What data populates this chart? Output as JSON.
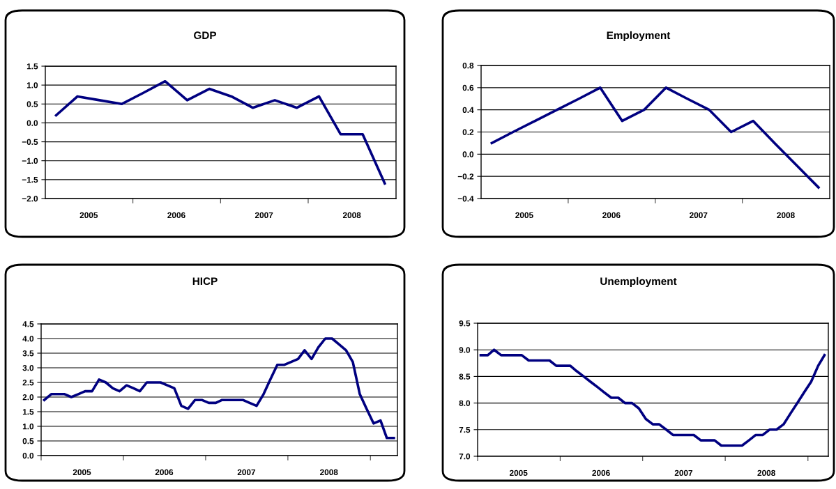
{
  "chart_data": [
    {
      "type": "line",
      "title": "GDP",
      "x": [
        "2005-02-15",
        "2005-05-15",
        "2005-08-15",
        "2005-11-15",
        "2006-02-15",
        "2006-05-15",
        "2006-08-15",
        "2006-11-15",
        "2007-02-15",
        "2007-05-15",
        "2007-08-15",
        "2007-11-15",
        "2008-02-15",
        "2008-05-15",
        "2008-08-15",
        "2008-11-15"
      ],
      "series": [
        {
          "color": "#000080",
          "values": [
            0.2,
            0.7,
            0.6,
            0.5,
            0.8,
            1.1,
            0.6,
            0.9,
            0.7,
            0.4,
            0.6,
            0.4,
            0.7,
            -0.3,
            -0.3,
            -1.6
          ]
        }
      ],
      "xlim": [
        "2005-01-01",
        "2009-01-01"
      ],
      "xticks": [
        {
          "value": "2005-07-01",
          "label": "2005"
        },
        {
          "value": "2006-01-01",
          "label": null
        },
        {
          "value": "2006-07-01",
          "label": "2006"
        },
        {
          "value": "2007-01-01",
          "label": null
        },
        {
          "value": "2007-07-01",
          "label": "2007"
        },
        {
          "value": "2008-01-01",
          "label": null
        },
        {
          "value": "2008-07-01",
          "label": "2008"
        }
      ],
      "ylim": [
        -2.0,
        1.5
      ],
      "yticks": [
        {
          "value": -2.0,
          "label": "−2.0"
        },
        {
          "value": -1.5,
          "label": "−1.5"
        },
        {
          "value": -1.0,
          "label": "−1.0"
        },
        {
          "value": -0.5,
          "label": "−0.5"
        },
        {
          "value": 0,
          "label": "0.0"
        },
        {
          "value": 0.5,
          "label": "0.5"
        },
        {
          "value": 1.0,
          "label": "1.0"
        },
        {
          "value": 1.5,
          "label": "1.5"
        }
      ],
      "grid": "y",
      "marker": "none",
      "line_style": "solid"
    },
    {
      "type": "line",
      "title": "Employment",
      "x": [
        "2005-02-15",
        "2005-05-15",
        "2005-08-15",
        "2005-11-15",
        "2006-02-15",
        "2006-05-15",
        "2006-08-15",
        "2006-11-15",
        "2007-02-15",
        "2007-05-15",
        "2007-08-15",
        "2007-11-15",
        "2008-02-15",
        "2008-05-15",
        "2008-08-15",
        "2008-11-15"
      ],
      "series": [
        {
          "color": "#000080",
          "values": [
            0.1,
            0.2,
            0.3,
            0.4,
            0.5,
            0.6,
            0.3,
            0.4,
            0.6,
            0.5,
            0.4,
            0.2,
            0.3,
            0.1,
            -0.1,
            -0.3
          ]
        }
      ],
      "xlim": [
        "2005-01-01",
        "2009-01-01"
      ],
      "xticks": [
        {
          "value": "2005-07-01",
          "label": "2005"
        },
        {
          "value": "2006-01-01",
          "label": null
        },
        {
          "value": "2006-07-01",
          "label": "2006"
        },
        {
          "value": "2007-01-01",
          "label": null
        },
        {
          "value": "2007-07-01",
          "label": "2007"
        },
        {
          "value": "2008-01-01",
          "label": null
        },
        {
          "value": "2008-07-01",
          "label": "2008"
        }
      ],
      "ylim": [
        -0.4,
        0.8
      ],
      "yticks": [
        {
          "value": -0.4,
          "label": "−0.4"
        },
        {
          "value": -0.2,
          "label": "−0.2"
        },
        {
          "value": 0,
          "label": "0.0"
        },
        {
          "value": 0.2,
          "label": "0.2"
        },
        {
          "value": 0.4,
          "label": "0.4"
        },
        {
          "value": 0.6,
          "label": "0.6"
        },
        {
          "value": 0.8,
          "label": "0.8"
        }
      ],
      "grid": "y",
      "marker": "none",
      "line_style": "solid"
    },
    {
      "type": "line",
      "title": "HICP",
      "x": [
        "2005-01-15",
        "2005-02-15",
        "2005-03-15",
        "2005-04-15",
        "2005-05-15",
        "2005-06-15",
        "2005-07-15",
        "2005-08-15",
        "2005-09-15",
        "2005-10-15",
        "2005-11-15",
        "2005-12-15",
        "2006-01-15",
        "2006-02-15",
        "2006-03-15",
        "2006-04-15",
        "2006-05-15",
        "2006-06-15",
        "2006-07-15",
        "2006-08-15",
        "2006-09-15",
        "2006-10-15",
        "2006-11-15",
        "2006-12-15",
        "2007-01-15",
        "2007-02-15",
        "2007-03-15",
        "2007-04-15",
        "2007-05-15",
        "2007-06-15",
        "2007-07-15",
        "2007-08-15",
        "2007-09-15",
        "2007-10-15",
        "2007-11-15",
        "2007-12-15",
        "2008-01-15",
        "2008-02-15",
        "2008-03-15",
        "2008-04-15",
        "2008-05-15",
        "2008-06-15",
        "2008-07-15",
        "2008-08-15",
        "2008-09-15",
        "2008-10-15",
        "2008-11-15",
        "2008-12-15",
        "2009-01-15",
        "2009-02-15",
        "2009-03-15",
        "2009-04-15"
      ],
      "series": [
        {
          "color": "#000080",
          "values": [
            1.9,
            2.1,
            2.1,
            2.1,
            2.0,
            2.1,
            2.2,
            2.2,
            2.6,
            2.5,
            2.3,
            2.2,
            2.4,
            2.3,
            2.2,
            2.5,
            2.5,
            2.5,
            2.4,
            2.3,
            1.7,
            1.6,
            1.9,
            1.9,
            1.8,
            1.8,
            1.9,
            1.9,
            1.9,
            1.9,
            1.8,
            1.7,
            2.1,
            2.6,
            3.1,
            3.1,
            3.2,
            3.3,
            3.6,
            3.3,
            3.7,
            4.0,
            4.0,
            3.8,
            3.6,
            3.2,
            2.1,
            1.6,
            1.1,
            1.2,
            0.6,
            0.6
          ]
        }
      ],
      "xlim": [
        "2005-01-01",
        "2009-05-01"
      ],
      "xticks": [
        {
          "value": "2005-01-01",
          "label": null
        },
        {
          "value": "2005-07-01",
          "label": "2005"
        },
        {
          "value": "2006-01-01",
          "label": null
        },
        {
          "value": "2006-07-01",
          "label": "2006"
        },
        {
          "value": "2007-01-01",
          "label": null
        },
        {
          "value": "2007-07-01",
          "label": "2007"
        },
        {
          "value": "2008-01-01",
          "label": null
        },
        {
          "value": "2008-07-01",
          "label": "2008"
        },
        {
          "value": "2009-01-01",
          "label": null
        }
      ],
      "ylim": [
        0.0,
        4.5
      ],
      "yticks": [
        {
          "value": 0,
          "label": "0.0"
        },
        {
          "value": 0.5,
          "label": "0.5"
        },
        {
          "value": 1.0,
          "label": "1.0"
        },
        {
          "value": 1.5,
          "label": "1.5"
        },
        {
          "value": 2.0,
          "label": "2.0"
        },
        {
          "value": 2.5,
          "label": "2.5"
        },
        {
          "value": 3.0,
          "label": "3.0"
        },
        {
          "value": 3.5,
          "label": "3.5"
        },
        {
          "value": 4.0,
          "label": "4.0"
        },
        {
          "value": 4.5,
          "label": "4.5"
        }
      ],
      "grid": "y",
      "marker": "none",
      "line_style": "solid"
    },
    {
      "type": "line",
      "title": "Unemployment",
      "x": [
        "2005-01-15",
        "2005-02-15",
        "2005-03-15",
        "2005-04-15",
        "2005-05-15",
        "2005-06-15",
        "2005-07-15",
        "2005-08-15",
        "2005-09-15",
        "2005-10-15",
        "2005-11-15",
        "2005-12-15",
        "2006-01-15",
        "2006-02-15",
        "2006-03-15",
        "2006-04-15",
        "2006-05-15",
        "2006-06-15",
        "2006-07-15",
        "2006-08-15",
        "2006-09-15",
        "2006-10-15",
        "2006-11-15",
        "2006-12-15",
        "2007-01-15",
        "2007-02-15",
        "2007-03-15",
        "2007-04-15",
        "2007-05-15",
        "2007-06-15",
        "2007-07-15",
        "2007-08-15",
        "2007-09-15",
        "2007-10-15",
        "2007-11-15",
        "2007-12-15",
        "2008-01-15",
        "2008-02-15",
        "2008-03-15",
        "2008-04-15",
        "2008-05-15",
        "2008-06-15",
        "2008-07-15",
        "2008-08-15",
        "2008-09-15",
        "2008-10-15",
        "2008-11-15",
        "2008-12-15",
        "2009-01-15",
        "2009-02-15",
        "2009-03-15"
      ],
      "series": [
        {
          "color": "#000080",
          "values": [
            8.9,
            8.9,
            9.0,
            8.9,
            8.9,
            8.9,
            8.9,
            8.8,
            8.8,
            8.8,
            8.8,
            8.7,
            8.7,
            8.7,
            8.6,
            8.5,
            8.4,
            8.3,
            8.2,
            8.1,
            8.1,
            8.0,
            8.0,
            7.9,
            7.7,
            7.6,
            7.6,
            7.5,
            7.4,
            7.4,
            7.4,
            7.4,
            7.3,
            7.3,
            7.3,
            7.2,
            7.2,
            7.2,
            7.2,
            7.3,
            7.4,
            7.4,
            7.5,
            7.5,
            7.6,
            7.8,
            8.0,
            8.2,
            8.4,
            8.7,
            8.9
          ]
        }
      ],
      "xlim": [
        "2005-01-01",
        "2009-04-01"
      ],
      "xticks": [
        {
          "value": "2005-01-01",
          "label": null
        },
        {
          "value": "2005-07-01",
          "label": "2005"
        },
        {
          "value": "2006-01-01",
          "label": null
        },
        {
          "value": "2006-07-01",
          "label": "2006"
        },
        {
          "value": "2007-01-01",
          "label": null
        },
        {
          "value": "2007-07-01",
          "label": "2007"
        },
        {
          "value": "2008-01-01",
          "label": null
        },
        {
          "value": "2008-07-01",
          "label": "2008"
        },
        {
          "value": "2009-01-01",
          "label": null
        }
      ],
      "ylim": [
        7.0,
        9.5
      ],
      "yticks": [
        {
          "value": 7.0,
          "label": "7.0"
        },
        {
          "value": 7.5,
          "label": "7.5"
        },
        {
          "value": 8.0,
          "label": "8.0"
        },
        {
          "value": 8.5,
          "label": "8.5"
        },
        {
          "value": 9.0,
          "label": "9.0"
        },
        {
          "value": 9.5,
          "label": "9.5"
        }
      ],
      "grid": "y",
      "marker": "none",
      "line_style": "solid"
    }
  ]
}
